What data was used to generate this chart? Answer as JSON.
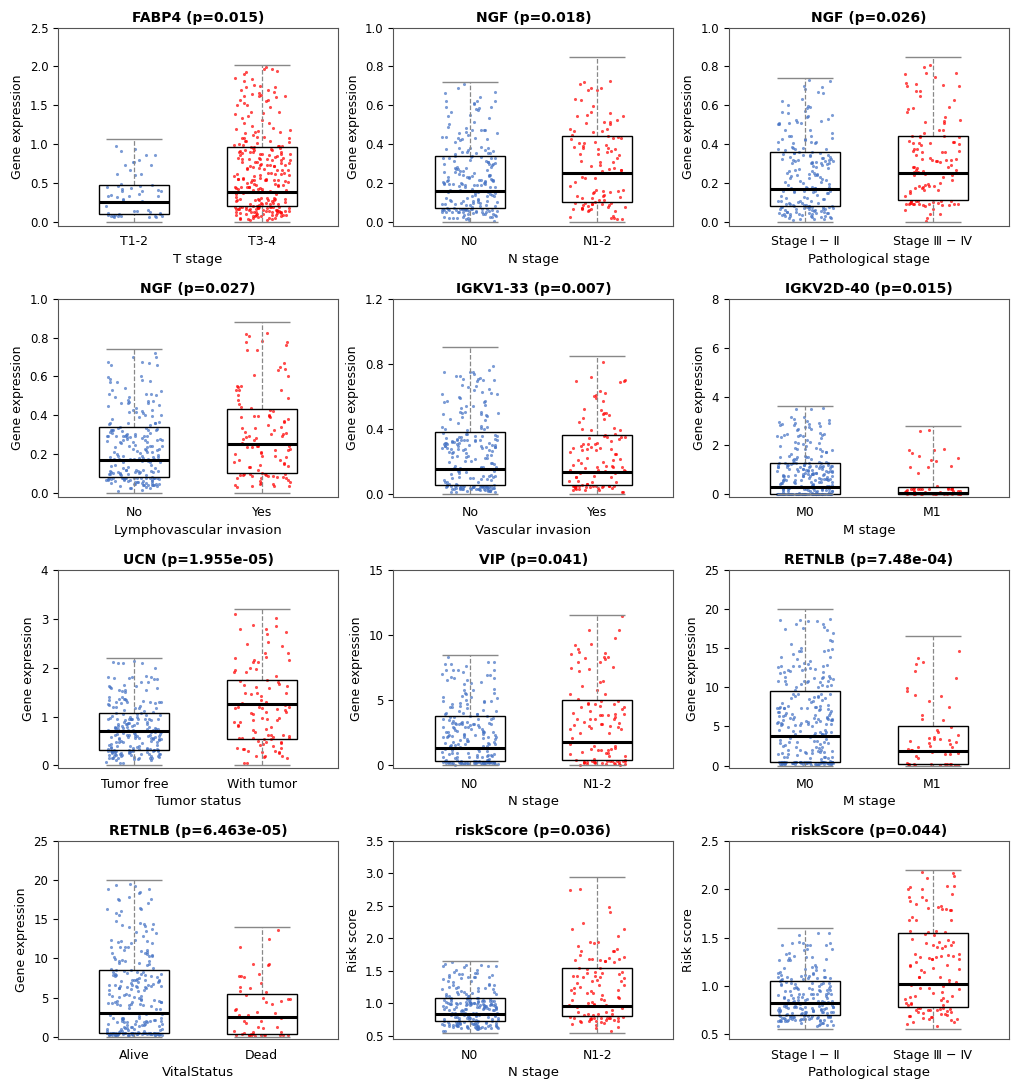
{
  "plots": [
    {
      "title": "FABP4 (p=0.015)",
      "ylabel": "Gene expression",
      "xlabel": "T stage",
      "groups": [
        "T1-2",
        "T3-4"
      ],
      "colors": [
        "#4472C4",
        "#FF0000"
      ],
      "ylim": [
        -0.05,
        2.5
      ],
      "ylim_display": [
        0.0,
        2.5
      ],
      "yticks": [
        0.0,
        0.5,
        1.0,
        1.5,
        2.0,
        2.5
      ],
      "boxes": [
        {
          "q1": 0.1,
          "median": 0.25,
          "q3": 0.48,
          "whislo": 0.0,
          "whishi": 1.06,
          "n": 55
        },
        {
          "q1": 0.2,
          "median": 0.38,
          "q3": 0.96,
          "whislo": 0.0,
          "whishi": 2.02,
          "n": 260
        }
      ]
    },
    {
      "title": "NGF (p=0.018)",
      "ylabel": "Gene expression",
      "xlabel": "N stage",
      "groups": [
        "N0",
        "N1-2"
      ],
      "colors": [
        "#4472C4",
        "#FF0000"
      ],
      "ylim": [
        -0.02,
        1.0
      ],
      "ylim_display": [
        0.0,
        1.0
      ],
      "yticks": [
        0.0,
        0.2,
        0.4,
        0.6,
        0.8,
        1.0
      ],
      "boxes": [
        {
          "q1": 0.07,
          "median": 0.16,
          "q3": 0.34,
          "whislo": 0.0,
          "whishi": 0.72,
          "n": 210
        },
        {
          "q1": 0.1,
          "median": 0.25,
          "q3": 0.44,
          "whislo": 0.0,
          "whishi": 0.85,
          "n": 105
        }
      ]
    },
    {
      "title": "NGF (p=0.026)",
      "ylabel": "Gene expression",
      "xlabel": "Pathological stage",
      "groups": [
        "Stage Ⅰ − Ⅱ",
        "Stage Ⅲ − Ⅳ"
      ],
      "colors": [
        "#4472C4",
        "#FF0000"
      ],
      "ylim": [
        -0.02,
        1.0
      ],
      "ylim_display": [
        0.0,
        1.0
      ],
      "yticks": [
        0.0,
        0.2,
        0.4,
        0.6,
        0.8,
        1.0
      ],
      "boxes": [
        {
          "q1": 0.08,
          "median": 0.17,
          "q3": 0.36,
          "whislo": 0.0,
          "whishi": 0.74,
          "n": 195
        },
        {
          "q1": 0.11,
          "median": 0.25,
          "q3": 0.44,
          "whislo": 0.0,
          "whishi": 0.85,
          "n": 115
        }
      ]
    },
    {
      "title": "NGF (p=0.027)",
      "ylabel": "Gene expression",
      "xlabel": "Lymphovascular invasion",
      "groups": [
        "No",
        "Yes"
      ],
      "colors": [
        "#4472C4",
        "#FF0000"
      ],
      "ylim": [
        -0.02,
        1.0
      ],
      "ylim_display": [
        0.0,
        1.0
      ],
      "yticks": [
        0.0,
        0.2,
        0.4,
        0.6,
        0.8,
        1.0
      ],
      "boxes": [
        {
          "q1": 0.08,
          "median": 0.17,
          "q3": 0.34,
          "whislo": 0.0,
          "whishi": 0.74,
          "n": 210
        },
        {
          "q1": 0.1,
          "median": 0.25,
          "q3": 0.43,
          "whislo": 0.0,
          "whishi": 0.88,
          "n": 105
        }
      ]
    },
    {
      "title": "IGKV1-33 (p=0.007)",
      "ylabel": "Gene expression",
      "xlabel": "Vascular invasion",
      "groups": [
        "No",
        "Yes"
      ],
      "colors": [
        "#4472C4",
        "#FF0000"
      ],
      "ylim": [
        -0.02,
        1.2
      ],
      "ylim_display": [
        0.0,
        1.2
      ],
      "yticks": [
        0.0,
        0.4,
        0.8,
        1.2
      ],
      "boxes": [
        {
          "q1": 0.05,
          "median": 0.15,
          "q3": 0.38,
          "whislo": 0.0,
          "whishi": 0.9,
          "n": 210
        },
        {
          "q1": 0.05,
          "median": 0.13,
          "q3": 0.36,
          "whislo": 0.0,
          "whishi": 0.85,
          "n": 105
        }
      ]
    },
    {
      "title": "IGKV2D-40 (p=0.015)",
      "ylabel": "Gene expression",
      "xlabel": "M stage",
      "groups": [
        "M0",
        "M1"
      ],
      "colors": [
        "#4472C4",
        "#FF0000"
      ],
      "ylim": [
        -0.1,
        8
      ],
      "ylim_display": [
        0.0,
        8
      ],
      "yticks": [
        0,
        2,
        4,
        6,
        8
      ],
      "boxes": [
        {
          "q1": 0.0,
          "median": 0.28,
          "q3": 1.3,
          "whislo": 0.0,
          "whishi": 3.6,
          "n": 255
        },
        {
          "q1": 0.0,
          "median": 0.05,
          "q3": 0.28,
          "whislo": 0.0,
          "whishi": 2.8,
          "n": 55
        }
      ]
    },
    {
      "title": "UCN (p=1.955e-05)",
      "ylabel": "Gene expression",
      "xlabel": "Tumor status",
      "groups": [
        "Tumor free",
        "With tumor"
      ],
      "colors": [
        "#4472C4",
        "#FF0000"
      ],
      "ylim": [
        -0.05,
        4
      ],
      "ylim_display": [
        0.0,
        4
      ],
      "yticks": [
        0,
        1,
        2,
        3,
        4
      ],
      "boxes": [
        {
          "q1": 0.32,
          "median": 0.7,
          "q3": 1.08,
          "whislo": 0.0,
          "whishi": 2.2,
          "n": 210
        },
        {
          "q1": 0.55,
          "median": 1.25,
          "q3": 1.75,
          "whislo": 0.0,
          "whishi": 3.2,
          "n": 100
        }
      ]
    },
    {
      "title": "VIP (p=0.041)",
      "ylabel": "Gene expression",
      "xlabel": "N stage",
      "groups": [
        "N0",
        "N1-2"
      ],
      "colors": [
        "#4472C4",
        "#FF0000"
      ],
      "ylim": [
        -0.2,
        15
      ],
      "ylim_display": [
        0.0,
        15
      ],
      "yticks": [
        0,
        5,
        10,
        15
      ],
      "boxes": [
        {
          "q1": 0.3,
          "median": 1.3,
          "q3": 3.8,
          "whislo": 0.0,
          "whishi": 8.5,
          "n": 210
        },
        {
          "q1": 0.4,
          "median": 1.8,
          "q3": 5.0,
          "whislo": 0.0,
          "whishi": 11.5,
          "n": 105
        }
      ]
    },
    {
      "title": "RETNLB (p=7.48e-04)",
      "ylabel": "Gene expression",
      "xlabel": "M stage",
      "groups": [
        "M0",
        "M1"
      ],
      "colors": [
        "#4472C4",
        "#FF0000"
      ],
      "ylim": [
        -0.3,
        25
      ],
      "ylim_display": [
        0.0,
        25
      ],
      "yticks": [
        0,
        5,
        10,
        15,
        20,
        25
      ],
      "boxes": [
        {
          "q1": 0.5,
          "median": 3.8,
          "q3": 9.5,
          "whislo": 0.0,
          "whishi": 20.0,
          "n": 255
        },
        {
          "q1": 0.2,
          "median": 1.8,
          "q3": 5.0,
          "whislo": 0.0,
          "whishi": 16.5,
          "n": 55
        }
      ]
    },
    {
      "title": "RETNLB (p=6.463e-05)",
      "ylabel": "Gene expression",
      "xlabel": "VitalStatus",
      "groups": [
        "Alive",
        "Dead"
      ],
      "colors": [
        "#4472C4",
        "#FF0000"
      ],
      "ylim": [
        -0.3,
        25
      ],
      "ylim_display": [
        0.0,
        25
      ],
      "yticks": [
        0,
        5,
        10,
        15,
        20,
        25
      ],
      "boxes": [
        {
          "q1": 0.5,
          "median": 3.0,
          "q3": 8.5,
          "whislo": 0.0,
          "whishi": 20.0,
          "n": 260
        },
        {
          "q1": 0.3,
          "median": 2.5,
          "q3": 5.5,
          "whislo": 0.0,
          "whishi": 14.0,
          "n": 55
        }
      ]
    },
    {
      "title": "riskScore (p=0.036)",
      "ylabel": "Risk score",
      "xlabel": "N stage",
      "groups": [
        "N0",
        "N1-2"
      ],
      "colors": [
        "#4472C4",
        "#FF0000"
      ],
      "ylim": [
        0.45,
        3.5
      ],
      "ylim_display": [
        0.5,
        3.5
      ],
      "yticks": [
        0.5,
        1.0,
        1.5,
        2.0,
        2.5,
        3.0,
        3.5
      ],
      "boxes": [
        {
          "q1": 0.72,
          "median": 0.84,
          "q3": 1.08,
          "whislo": 0.55,
          "whishi": 1.65,
          "n": 210
        },
        {
          "q1": 0.8,
          "median": 0.96,
          "q3": 1.55,
          "whislo": 0.55,
          "whishi": 2.95,
          "n": 105
        }
      ]
    },
    {
      "title": "riskScore (p=0.044)",
      "ylabel": "Risk score",
      "xlabel": "Pathological stage",
      "groups": [
        "Stage Ⅰ − Ⅱ",
        "Stage Ⅲ − Ⅳ"
      ],
      "colors": [
        "#4472C4",
        "#FF0000"
      ],
      "ylim": [
        0.45,
        2.5
      ],
      "ylim_display": [
        0.5,
        2.5
      ],
      "yticks": [
        0.5,
        1.0,
        1.5,
        2.0,
        2.5
      ],
      "boxes": [
        {
          "q1": 0.7,
          "median": 0.82,
          "q3": 1.05,
          "whislo": 0.55,
          "whishi": 1.6,
          "n": 195
        },
        {
          "q1": 0.78,
          "median": 1.02,
          "q3": 1.55,
          "whislo": 0.55,
          "whishi": 2.2,
          "n": 115
        }
      ]
    }
  ],
  "bg_color": "#ffffff",
  "box_color": "#000000",
  "whisker_color": "#888888",
  "scatter_alpha": 0.7,
  "scatter_size": 5,
  "title_fontsize": 10,
  "label_fontsize": 9,
  "tick_fontsize": 8.5
}
